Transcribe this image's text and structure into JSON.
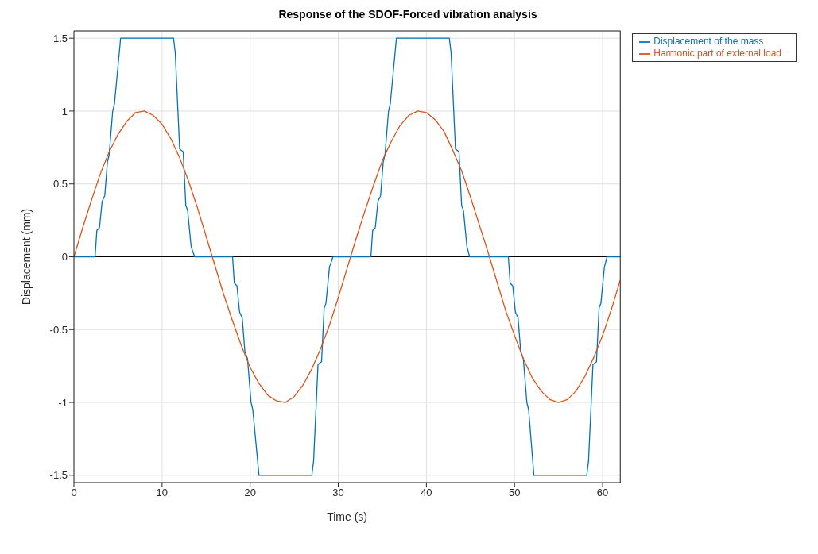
{
  "chart_data": {
    "type": "line",
    "title": "Response of the SDOF-Forced vibration analysis",
    "xlabel": "Time (s)",
    "ylabel": "Displacement (mm)",
    "xlim": [
      0,
      62
    ],
    "xticks": [
      0,
      10,
      20,
      30,
      40,
      50,
      60
    ],
    "ylim": [
      -1.55,
      1.55
    ],
    "yticks": [
      -1.5,
      -1,
      -0.5,
      0,
      0.5,
      1,
      1.5
    ],
    "grid": true,
    "legend": "top right",
    "line_style": "solid",
    "marker": "none",
    "ref_lines": [
      {
        "axis": "y",
        "value": 0,
        "color": "#000000"
      }
    ],
    "series": [
      {
        "name": "Displacement of the mass",
        "color": "#0072bd",
        "x": [
          0,
          2.4,
          2.6,
          2.9,
          3.2,
          3.5,
          3.8,
          4.0,
          4.4,
          4.6,
          5.3,
          11.3,
          11.5,
          12.0,
          12.4,
          12.7,
          12.9,
          13.3,
          13.7,
          18.0,
          18.2,
          18.5,
          18.8,
          19.1,
          19.4,
          19.7,
          20.1,
          20.3,
          21.0,
          27.0,
          27.2,
          27.7,
          28.1,
          28.4,
          28.6,
          29.0,
          29.4,
          33.7,
          33.9,
          34.2,
          34.5,
          34.8,
          35.1,
          35.3,
          35.7,
          35.9,
          36.6,
          42.6,
          42.8,
          43.3,
          43.7,
          44.0,
          44.2,
          44.6,
          44.9,
          49.3,
          49.5,
          49.8,
          50.1,
          50.4,
          50.7,
          51.0,
          51.4,
          51.6,
          52.2,
          58.2,
          58.4,
          58.9,
          59.3,
          59.6,
          59.8,
          60.2,
          60.5,
          62
        ],
        "values": [
          0,
          0,
          0.18,
          0.2,
          0.38,
          0.42,
          0.65,
          0.7,
          1.0,
          1.05,
          1.5,
          1.5,
          1.4,
          0.74,
          0.72,
          0.35,
          0.32,
          0.07,
          0,
          0,
          -0.18,
          -0.2,
          -0.38,
          -0.42,
          -0.65,
          -0.7,
          -1.0,
          -1.05,
          -1.5,
          -1.5,
          -1.4,
          -0.74,
          -0.72,
          -0.35,
          -0.32,
          -0.07,
          0,
          0,
          0.18,
          0.2,
          0.38,
          0.42,
          0.65,
          0.7,
          1.0,
          1.05,
          1.5,
          1.5,
          1.4,
          0.74,
          0.72,
          0.35,
          0.32,
          0.07,
          0,
          0,
          -0.18,
          -0.2,
          -0.38,
          -0.42,
          -0.65,
          -0.7,
          -1.0,
          -1.05,
          -1.5,
          -1.5,
          -1.4,
          -0.74,
          -0.72,
          -0.35,
          -0.32,
          -0.07,
          0,
          0
        ]
      },
      {
        "name": "Harmonic part of external load",
        "color": "#d95319",
        "x": [
          0,
          1,
          2,
          3,
          4,
          5,
          6,
          7,
          8,
          9,
          10,
          11,
          12,
          13,
          14,
          15,
          16,
          17,
          18,
          19,
          20,
          21,
          22,
          23,
          24,
          25,
          26,
          27,
          28,
          29,
          30,
          31,
          32,
          33,
          34,
          35,
          36,
          37,
          38,
          39,
          40,
          41,
          42,
          43,
          44,
          45,
          46,
          47,
          48,
          49,
          50,
          51,
          52,
          53,
          54,
          55,
          56,
          57,
          58,
          59,
          60,
          61,
          62
        ],
        "values": [
          0,
          0.2,
          0.39,
          0.57,
          0.72,
          0.84,
          0.93,
          0.99,
          1.0,
          0.97,
          0.91,
          0.81,
          0.68,
          0.52,
          0.34,
          0.14,
          -0.06,
          -0.26,
          -0.44,
          -0.61,
          -0.76,
          -0.87,
          -0.95,
          -0.99,
          -1.0,
          -0.96,
          -0.88,
          -0.77,
          -0.63,
          -0.47,
          -0.28,
          -0.08,
          0.12,
          0.31,
          0.49,
          0.66,
          0.79,
          0.9,
          0.97,
          1.0,
          0.99,
          0.94,
          0.86,
          0.73,
          0.59,
          0.41,
          0.22,
          0.03,
          -0.17,
          -0.37,
          -0.54,
          -0.7,
          -0.83,
          -0.92,
          -0.98,
          -1.0,
          -0.98,
          -0.92,
          -0.82,
          -0.69,
          -0.54,
          -0.36,
          -0.16
        ]
      }
    ]
  }
}
